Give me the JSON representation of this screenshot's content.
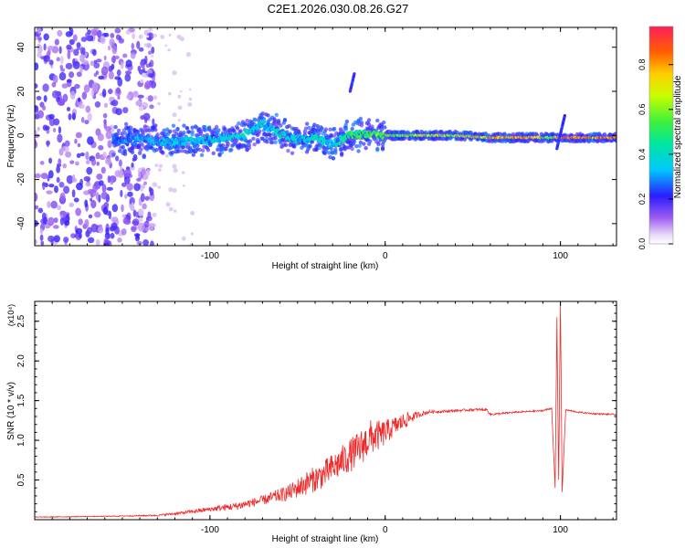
{
  "title": "C2E1.2026.030.08.26.G27",
  "colors": {
    "snr_line": "#ee2a2a",
    "signal_points": "#5a1ad6",
    "frame": "#000000"
  },
  "chart_data": [
    {
      "type": "heatmap",
      "title": "C2E1.2026.030.08.26.G27",
      "xlabel": "Height of straight line (km)",
      "ylabel": "Frequency (Hz)",
      "xlim": [
        -200,
        132
      ],
      "ylim": [
        -50,
        49
      ],
      "xticks": [
        -100,
        0,
        100
      ],
      "yticks": [
        -40,
        -20,
        0,
        20,
        40
      ],
      "grid": false,
      "colorbar": {
        "label": "Normalized spectral amplitude",
        "range": [
          0.0,
          0.97
        ],
        "ticks": [
          0.0,
          0.2,
          0.4,
          0.6,
          0.8
        ],
        "colormap": "rainbow (purple-blue-cyan-green-yellow-red)"
      },
      "ridge": {
        "x": [
          -155,
          -140,
          -120,
          -100,
          -80,
          -70,
          -60,
          -50,
          -40,
          -30,
          -20,
          -10,
          0,
          20,
          40,
          60,
          80,
          95,
          100,
          132
        ],
        "y": [
          -2,
          -2,
          -3,
          -2,
          0,
          5,
          1,
          -2,
          -1,
          -4,
          0,
          1,
          0,
          0,
          0,
          -1,
          -1,
          -1,
          -1,
          -1
        ],
        "peak_amplitude": [
          0.3,
          0.35,
          0.4,
          0.4,
          0.45,
          0.4,
          0.45,
          0.4,
          0.45,
          0.4,
          0.55,
          0.6,
          0.65,
          0.7,
          0.75,
          0.85,
          0.9,
          0.6,
          0.95,
          0.95
        ]
      },
      "spikes": [
        {
          "x": -20,
          "y_from": 20,
          "y_to": 28
        },
        {
          "x": 98,
          "y_from": -6,
          "y_to": 9
        }
      ],
      "noise_region": {
        "x_from": -200,
        "x_to": -140
      }
    },
    {
      "type": "line",
      "xlabel": "Height of straight line (km)",
      "ylabel": "SNR (10 * v/v)",
      "y_scale_label": "(x10⁴)",
      "xlim": [
        -200,
        132
      ],
      "ylim": [
        0.0,
        2.75
      ],
      "xticks": [
        -100,
        0,
        100
      ],
      "yticks": [
        0.5,
        1.0,
        1.5,
        2.0,
        2.5
      ],
      "grid": false,
      "series": [
        {
          "color": "#ee2a2a",
          "x": [
            -200,
            -160,
            -130,
            -115,
            -100,
            -85,
            -70,
            -55,
            -45,
            -35,
            -25,
            -15,
            -8,
            -2,
            5,
            12,
            18,
            25,
            35,
            50,
            58,
            60,
            75,
            90,
            95,
            97,
            98,
            99,
            100,
            101,
            103,
            110,
            120,
            132
          ],
          "y": [
            0.03,
            0.04,
            0.05,
            0.08,
            0.12,
            0.15,
            0.22,
            0.3,
            0.4,
            0.5,
            0.65,
            0.8,
            0.95,
            1.0,
            1.12,
            1.22,
            1.3,
            1.35,
            1.36,
            1.38,
            1.38,
            1.32,
            1.35,
            1.37,
            1.4,
            0.4,
            2.55,
            0.5,
            2.72,
            0.35,
            1.38,
            1.35,
            1.33,
            1.32
          ],
          "noise_amplitude": [
            0.01,
            0.01,
            0.02,
            0.04,
            0.06,
            0.1,
            0.12,
            0.2,
            0.3,
            0.35,
            0.4,
            0.45,
            0.45,
            0.35,
            0.25,
            0.2,
            0.08,
            0.04,
            0.03,
            0.03,
            0.03,
            0.03,
            0.02,
            0.02,
            0.02,
            0,
            0,
            0,
            0,
            0,
            0.02,
            0.02,
            0.02,
            0.02
          ]
        }
      ]
    }
  ]
}
